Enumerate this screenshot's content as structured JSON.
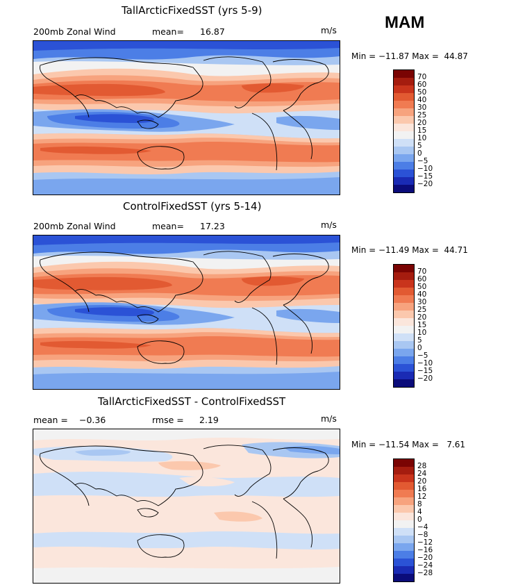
{
  "season": "MAM",
  "panels": [
    {
      "title": "TallArcticFixedSST (yrs 5-9)",
      "left_label": "200mb Zonal Wind",
      "stat_label": "mean=",
      "stat_value": "16.87",
      "units": "m/s",
      "minmax": "Min = −11.87 Max =  44.87",
      "colorbar": {
        "labels": [
          "70",
          "60",
          "50",
          "40",
          "30",
          "25",
          "20",
          "15",
          "10",
          "5",
          "0",
          "−5",
          "−10",
          "−15",
          "−20"
        ],
        "colors": [
          "#7a0403",
          "#a51c0f",
          "#c9341c",
          "#e25a32",
          "#f07b52",
          "#f7a37e",
          "#fbc8ad",
          "#fbe6dc",
          "#f2f2f2",
          "#cfe0f7",
          "#a9c7f2",
          "#7aa6ee",
          "#4c7ee6",
          "#2b52d6",
          "#1a2bb4",
          "#0b0c7a"
        ]
      }
    },
    {
      "title": "ControlFixedSST (yrs 5-14)",
      "left_label": "200mb Zonal Wind",
      "stat_label": "mean=",
      "stat_value": "17.23",
      "units": "m/s",
      "minmax": "Min = −11.49 Max =  44.71",
      "colorbar": {
        "labels": [
          "70",
          "60",
          "50",
          "40",
          "30",
          "25",
          "20",
          "15",
          "10",
          "5",
          "0",
          "−5",
          "−10",
          "−15",
          "−20"
        ],
        "colors": [
          "#7a0403",
          "#a51c0f",
          "#c9341c",
          "#e25a32",
          "#f07b52",
          "#f7a37e",
          "#fbc8ad",
          "#fbe6dc",
          "#f2f2f2",
          "#cfe0f7",
          "#a9c7f2",
          "#7aa6ee",
          "#4c7ee6",
          "#2b52d6",
          "#1a2bb4",
          "#0b0c7a"
        ]
      }
    },
    {
      "title": "TallArcticFixedSST - ControlFixedSST",
      "left_label": "mean =",
      "left_value": "−0.36",
      "stat_label": "rmse =",
      "stat_value": "2.19",
      "units": "m/s",
      "minmax": "Min = −11.54 Max =   7.61",
      "colorbar": {
        "labels": [
          "28",
          "24",
          "20",
          "16",
          "12",
          "8",
          "4",
          "0",
          "−4",
          "−8",
          "−12",
          "−16",
          "−20",
          "−24",
          "−28"
        ],
        "colors": [
          "#7a0403",
          "#a51c0f",
          "#c9341c",
          "#e25a32",
          "#f07b52",
          "#f7a37e",
          "#fbc8ad",
          "#fbe6dc",
          "#f2f2f2",
          "#cfe0f7",
          "#a9c7f2",
          "#7aa6ee",
          "#4c7ee6",
          "#2b52d6",
          "#1a2bb4",
          "#0b0c7a"
        ]
      }
    }
  ]
}
